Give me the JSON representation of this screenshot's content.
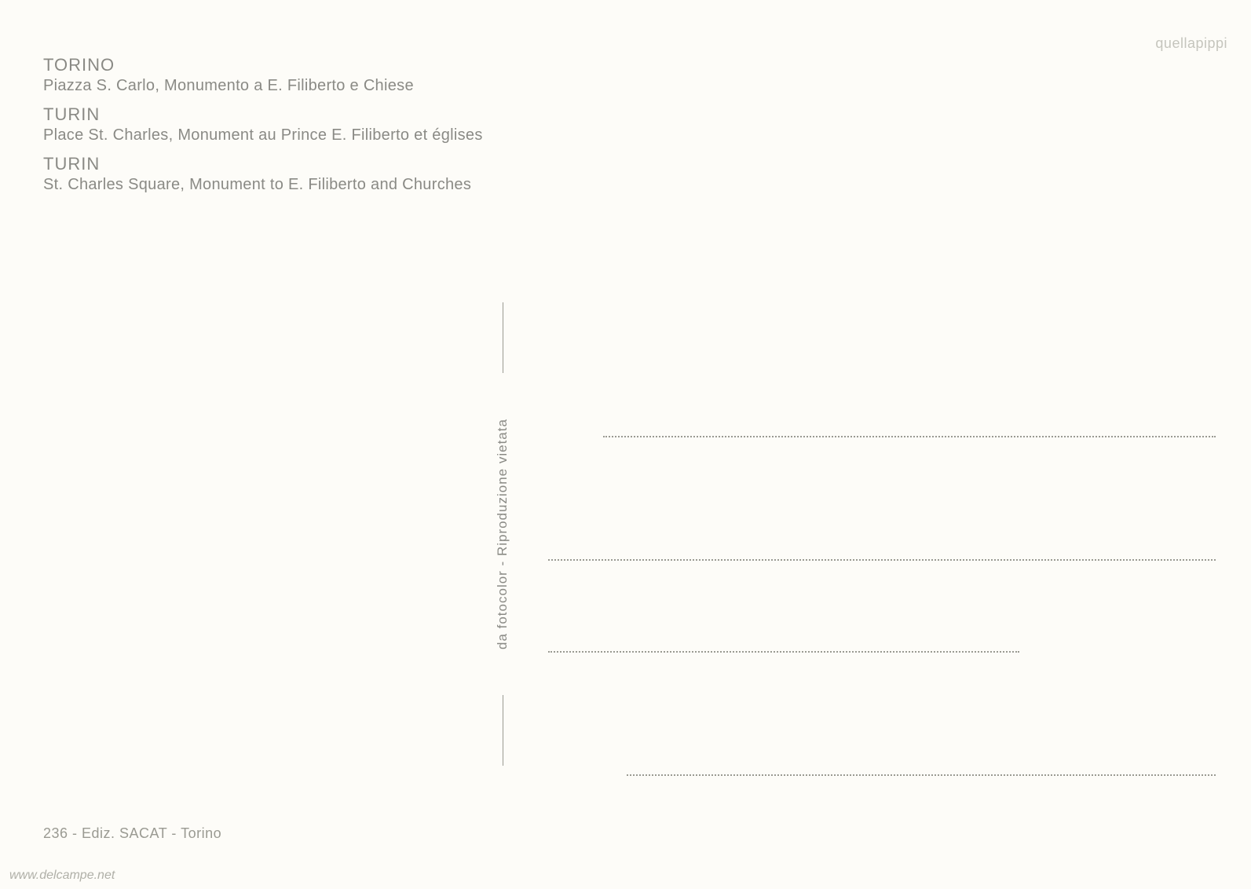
{
  "captions": [
    {
      "title": "TORINO",
      "desc": "Piazza S. Carlo, Monumento a E. Filiberto e Chiese"
    },
    {
      "title": "TURIN",
      "desc": "Place St. Charles, Monument au Prince E. Filiberto et églises"
    },
    {
      "title": "TURIN",
      "desc": "St. Charles Square, Monument to E. Filiberto and Churches"
    }
  ],
  "divider_text": "da fotocolor - Riproduzione vietata",
  "publisher": "236 - Ediz. SACAT - Torino",
  "watermark_site": "www.delcampe.net",
  "watermark_user": "quellapippi",
  "colors": {
    "background": "#fdfcf8",
    "text": "#8a8a85",
    "dots": "#9a9a92"
  }
}
